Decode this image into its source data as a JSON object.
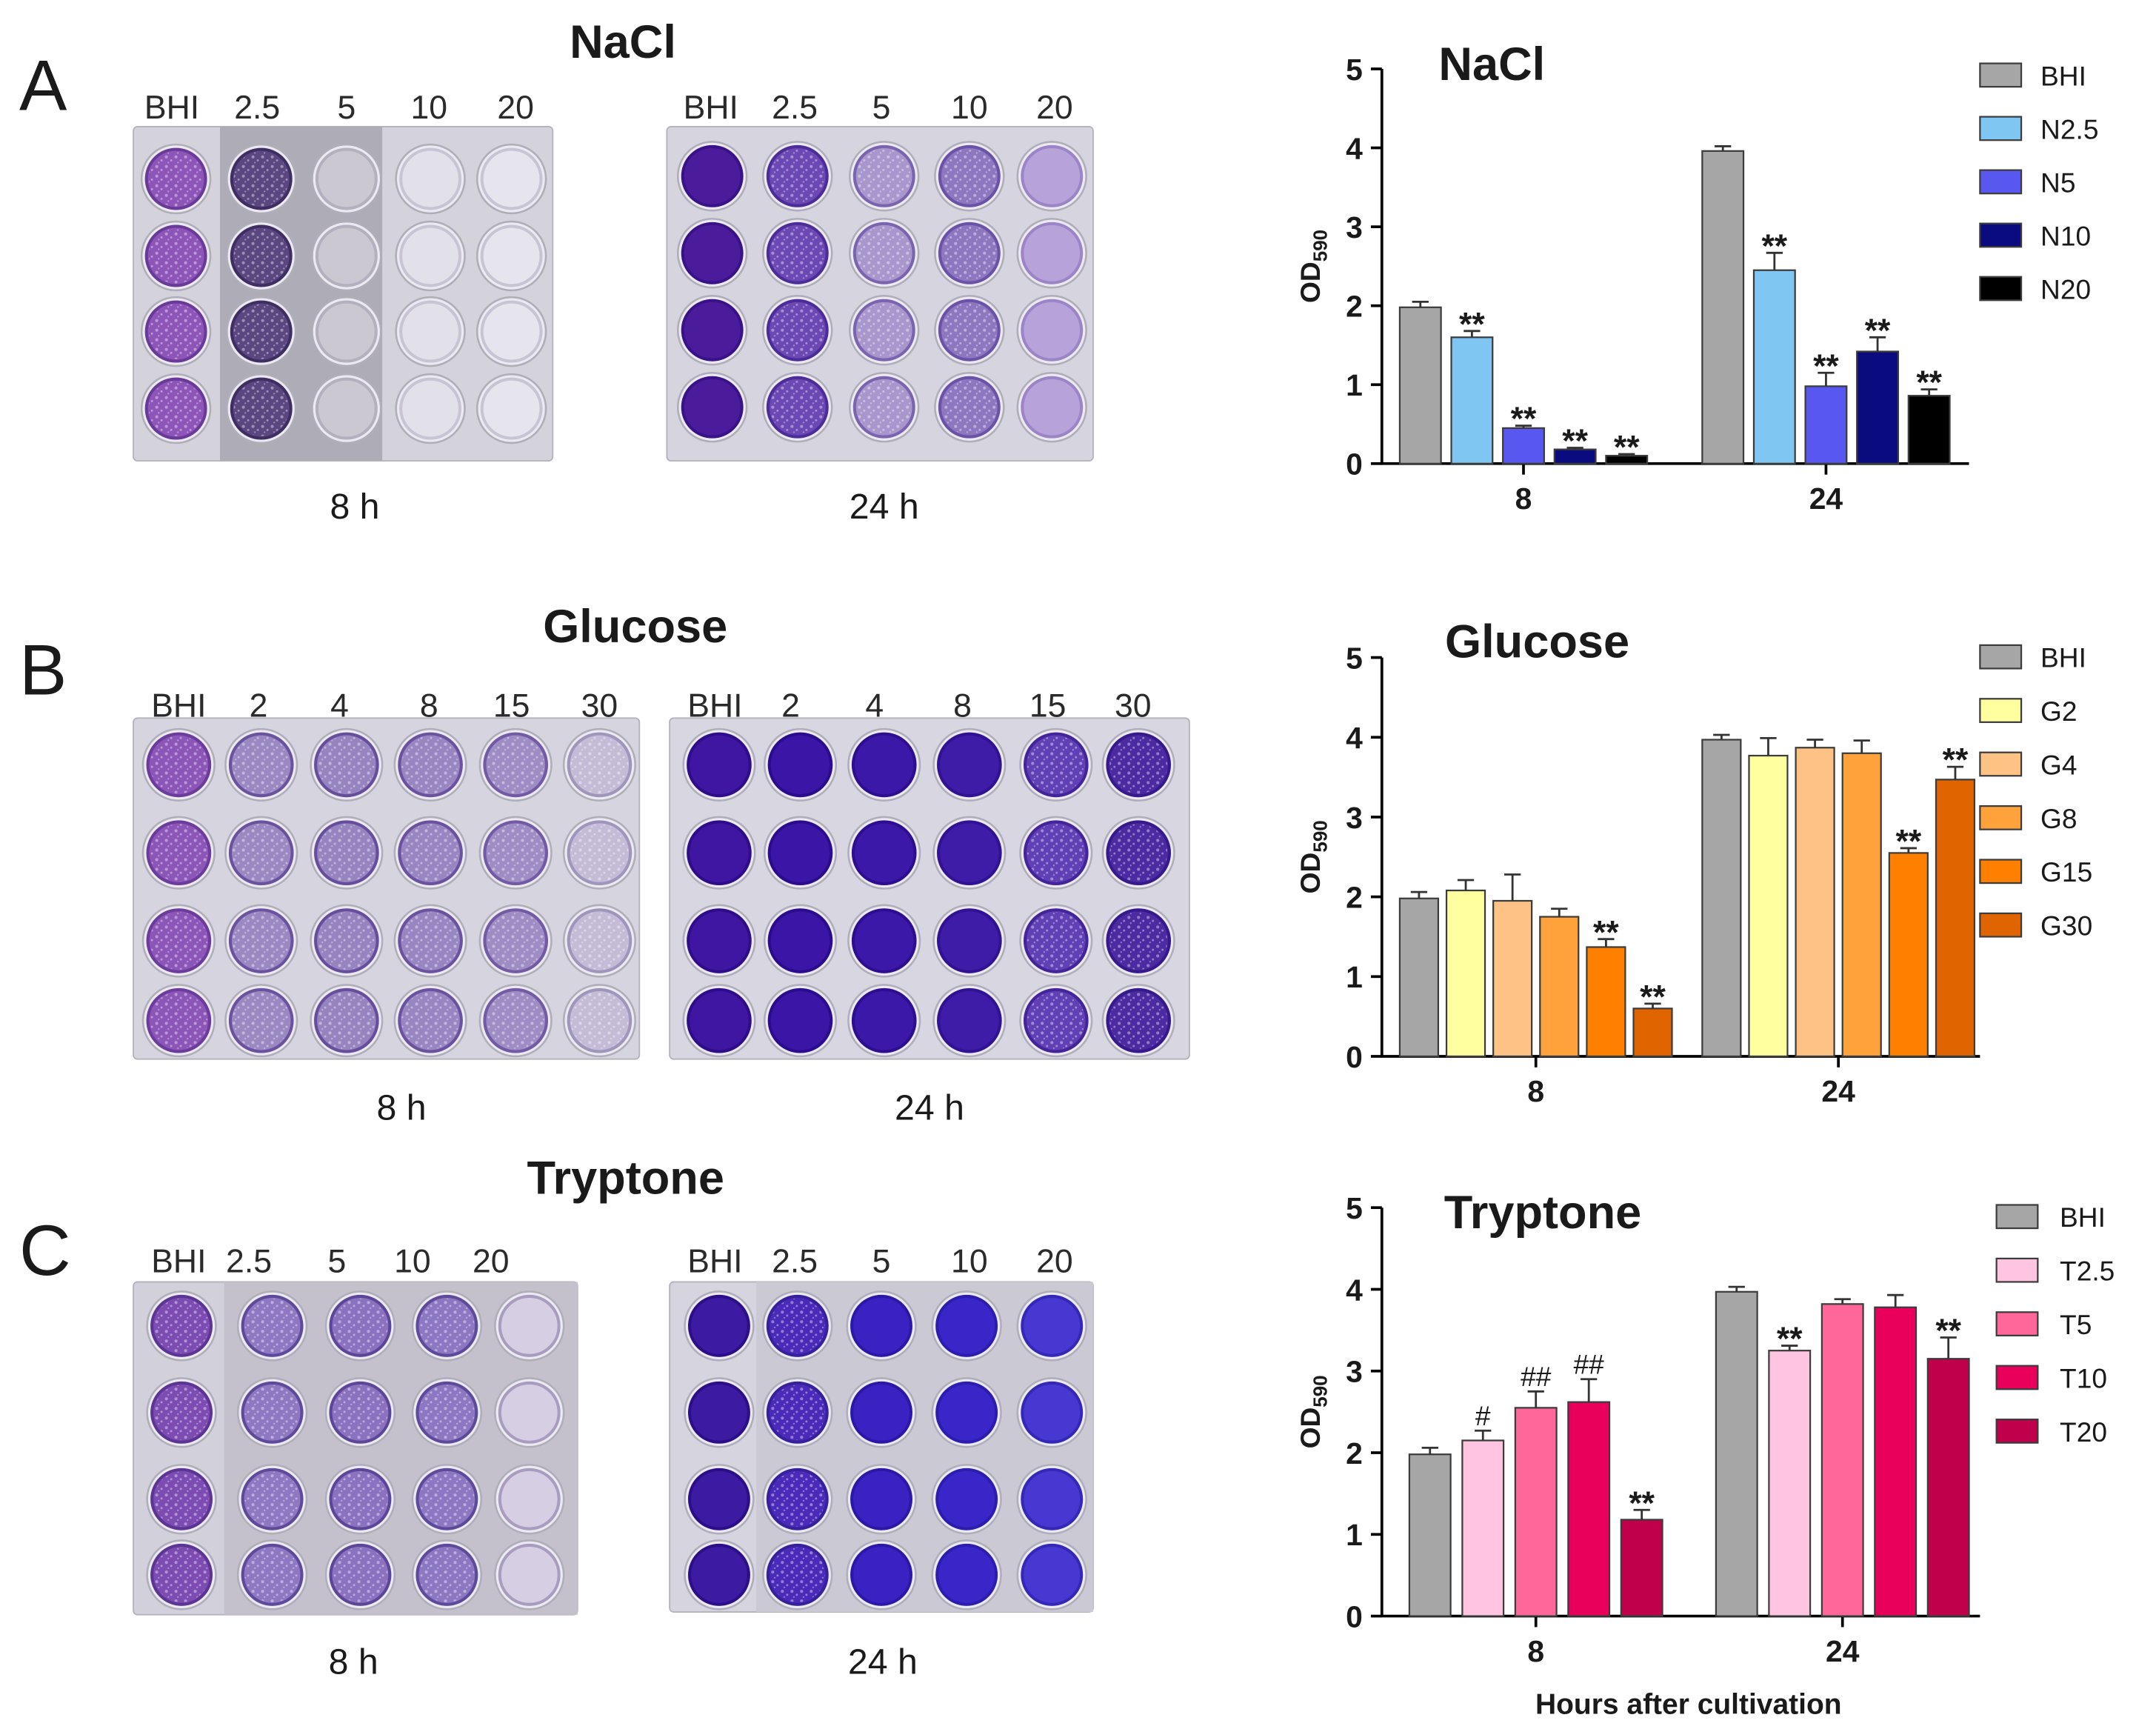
{
  "panels": [
    {
      "label": "A",
      "title": "NaCl",
      "plates": [
        {
          "time": "8 h",
          "columns": [
            "BHI",
            "2.5",
            "5",
            "10",
            "20"
          ]
        },
        {
          "time": "24 h",
          "columns": [
            "BHI",
            "2.5",
            "5",
            "10",
            "20"
          ]
        }
      ]
    },
    {
      "label": "B",
      "title": "Glucose",
      "plates": [
        {
          "time": "8 h",
          "columns": [
            "BHI",
            "2",
            "4",
            "8",
            "15",
            "30"
          ]
        },
        {
          "time": "24 h",
          "columns": [
            "BHI",
            "2",
            "4",
            "8",
            "15",
            "30"
          ]
        }
      ]
    },
    {
      "label": "C",
      "title": "Tryptone",
      "plates": [
        {
          "time": "8 h",
          "columns": [
            "BHI",
            "2.5",
            "5",
            "10",
            "20"
          ]
        },
        {
          "time": "24 h",
          "columns": [
            "BHI",
            "2.5",
            "5",
            "10",
            "20"
          ]
        }
      ]
    }
  ],
  "chart_data": [
    {
      "type": "bar",
      "title": "NaCl",
      "ylabel": "OD",
      "ylabel_subscript": "590",
      "ylim": [
        0,
        5
      ],
      "yticks": [
        0,
        1,
        2,
        3,
        4,
        5
      ],
      "categories": [
        "8",
        "24"
      ],
      "legend_position": "right",
      "series": [
        {
          "name": "BHI",
          "color": "#a6a6a6",
          "values": [
            1.98,
            3.96
          ],
          "errors": [
            0.07,
            0.06
          ],
          "annotations": [
            "",
            ""
          ]
        },
        {
          "name": "N2.5",
          "color": "#80c6f2",
          "values": [
            1.6,
            2.45
          ],
          "errors": [
            0.08,
            0.22
          ],
          "annotations": [
            "**",
            "**"
          ]
        },
        {
          "name": "N5",
          "color": "#5858f0",
          "values": [
            0.45,
            0.98
          ],
          "errors": [
            0.03,
            0.17
          ],
          "annotations": [
            "**",
            "**"
          ]
        },
        {
          "name": "N10",
          "color": "#0b0b80",
          "values": [
            0.18,
            1.42
          ],
          "errors": [
            0.02,
            0.18
          ],
          "annotations": [
            "**",
            "**"
          ]
        },
        {
          "name": "N20",
          "color": "#000000",
          "values": [
            0.1,
            0.86
          ],
          "errors": [
            0.02,
            0.08
          ],
          "annotations": [
            "**",
            "**"
          ]
        }
      ]
    },
    {
      "type": "bar",
      "title": "Glucose",
      "ylabel": "OD",
      "ylabel_subscript": "590",
      "ylim": [
        0,
        5
      ],
      "yticks": [
        0,
        1,
        2,
        3,
        4,
        5
      ],
      "categories": [
        "8",
        "24"
      ],
      "legend_position": "right",
      "series": [
        {
          "name": "BHI",
          "color": "#a6a6a6",
          "values": [
            1.98,
            3.97
          ],
          "errors": [
            0.08,
            0.06
          ],
          "annotations": [
            "",
            ""
          ]
        },
        {
          "name": "G2",
          "color": "#ffffa0",
          "values": [
            2.08,
            3.77
          ],
          "errors": [
            0.13,
            0.22
          ],
          "annotations": [
            "",
            ""
          ]
        },
        {
          "name": "G4",
          "color": "#ffc285",
          "values": [
            1.95,
            3.87
          ],
          "errors": [
            0.33,
            0.1
          ],
          "annotations": [
            "",
            ""
          ]
        },
        {
          "name": "G8",
          "color": "#ffa23c",
          "values": [
            1.75,
            3.8
          ],
          "errors": [
            0.1,
            0.16
          ],
          "annotations": [
            "",
            ""
          ]
        },
        {
          "name": "G15",
          "color": "#ff8000",
          "values": [
            1.37,
            2.55
          ],
          "errors": [
            0.1,
            0.06
          ],
          "annotations": [
            "**",
            "**"
          ]
        },
        {
          "name": "G30",
          "color": "#e06400",
          "values": [
            0.6,
            3.47
          ],
          "errors": [
            0.06,
            0.16
          ],
          "annotations": [
            "**",
            "**"
          ]
        }
      ]
    },
    {
      "type": "bar",
      "title": "Tryptone",
      "xlabel": "Hours after cultivation",
      "ylabel": "OD",
      "ylabel_subscript": "590",
      "ylim": [
        0,
        5
      ],
      "yticks": [
        0,
        1,
        2,
        3,
        4,
        5
      ],
      "categories": [
        "8",
        "24"
      ],
      "legend_position": "right",
      "series": [
        {
          "name": "BHI",
          "color": "#a6a6a6",
          "values": [
            1.98,
            3.97
          ],
          "errors": [
            0.08,
            0.06
          ],
          "annotations": [
            "",
            ""
          ]
        },
        {
          "name": "T2.5",
          "color": "#ffc4df",
          "values": [
            2.15,
            3.25
          ],
          "errors": [
            0.12,
            0.06
          ],
          "annotations": [
            "#",
            "**"
          ]
        },
        {
          "name": "T5",
          "color": "#ff6699",
          "values": [
            2.55,
            3.82
          ],
          "errors": [
            0.2,
            0.06
          ],
          "annotations": [
            "##",
            ""
          ]
        },
        {
          "name": "T10",
          "color": "#e8005a",
          "values": [
            2.62,
            3.78
          ],
          "errors": [
            0.28,
            0.15
          ],
          "annotations": [
            "##",
            ""
          ]
        },
        {
          "name": "T20",
          "color": "#c0004a",
          "values": [
            1.18,
            3.15
          ],
          "errors": [
            0.12,
            0.26
          ],
          "annotations": [
            "**",
            "**"
          ]
        }
      ]
    }
  ]
}
